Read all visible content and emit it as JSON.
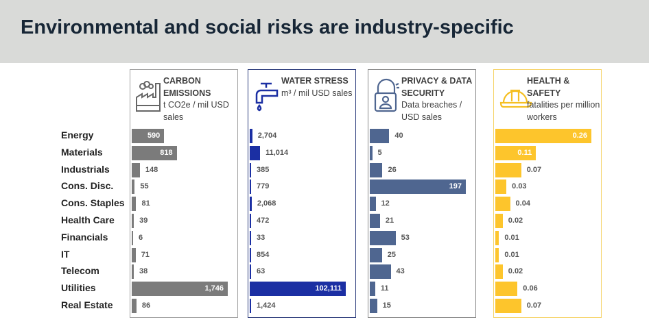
{
  "title": "Environmental and social risks are industry-specific",
  "chart_data": {
    "type": "bar",
    "orientation": "horizontal",
    "categories": [
      "Energy",
      "Materials",
      "Industrials",
      "Cons. Disc.",
      "Cons. Staples",
      "Health Care",
      "Financials",
      "IT",
      "Telecom",
      "Utilities",
      "Real Estate"
    ],
    "series": [
      {
        "name": "CARBON EMISSIONS",
        "unit": "t CO2e / mil USD sales",
        "color": "#7b7b7b",
        "icon": "factory-icon",
        "values": [
          590,
          818,
          148,
          55,
          81,
          39,
          6,
          71,
          38,
          1746,
          86
        ],
        "labels": [
          "590",
          "818",
          "148",
          "55",
          "81",
          "39",
          "6",
          "71",
          "38",
          "1,746",
          "86"
        ]
      },
      {
        "name": "WATER STRESS",
        "unit": "m³ / mil USD sales",
        "color": "#1b2fa3",
        "icon": "faucet-icon",
        "values": [
          2704,
          11014,
          385,
          779,
          2068,
          472,
          33,
          854,
          63,
          102111,
          1424
        ],
        "labels": [
          "2,704",
          "11,014",
          "385",
          "779",
          "2,068",
          "472",
          "33",
          "854",
          "63",
          "102,111",
          "1,424"
        ]
      },
      {
        "name": "PRIVACY & DATA SECURITY",
        "unit": "Data breaches / USD sales",
        "color": "#4f6690",
        "icon": "lock-user-icon",
        "values": [
          40,
          5,
          26,
          197,
          12,
          21,
          53,
          25,
          43,
          11,
          15
        ],
        "labels": [
          "40",
          "5",
          "26",
          "197",
          "12",
          "21",
          "53",
          "25",
          "43",
          "11",
          "15"
        ]
      },
      {
        "name": "HEALTH & SAFETY",
        "unit": "fatalities per million workers",
        "color": "#fdc52c",
        "icon": "hard-hat-icon",
        "values": [
          0.26,
          0.11,
          0.07,
          0.03,
          0.04,
          0.02,
          0.01,
          0.01,
          0.02,
          0.06,
          0.07
        ],
        "labels": [
          "0.26",
          "0.11",
          "0.07",
          "0.03",
          "0.04",
          "0.02",
          "0.01",
          "0.01",
          "0.02",
          "0.06",
          "0.07"
        ]
      }
    ]
  }
}
